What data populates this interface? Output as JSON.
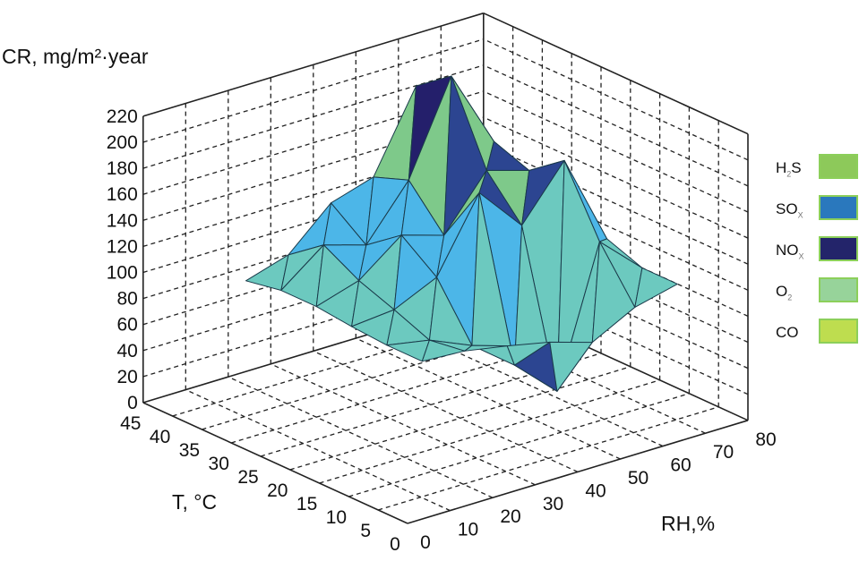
{
  "chart_data": {
    "type": "surface3d",
    "zlabel": "CR, mg/m²·year",
    "xlabel": "T, °C",
    "ylabel": "RH,%",
    "z_ticks": [
      "0",
      "20",
      "40",
      "60",
      "80",
      "100",
      "120",
      "140",
      "160",
      "180",
      "200",
      "220"
    ],
    "t_ticks": [
      "0",
      "5",
      "10",
      "15",
      "20",
      "25",
      "30",
      "35",
      "40",
      "45"
    ],
    "rh_ticks": [
      "0",
      "10",
      "20",
      "30",
      "40",
      "50",
      "60",
      "70",
      "80"
    ],
    "zlim": [
      0,
      220
    ],
    "tlim": [
      0,
      45
    ],
    "rhlim": [
      0,
      80
    ],
    "legend": [
      {
        "label": "H",
        "sub": "2",
        "tail": "S",
        "color": "#8dc95a"
      },
      {
        "label": "SO",
        "sub": "X",
        "tail": "",
        "color": "#2a78bd"
      },
      {
        "label": "NO",
        "sub": "X",
        "tail": "",
        "color": "#23246a"
      },
      {
        "label": "O",
        "sub": "2",
        "tail": "",
        "color": "#97d39a"
      },
      {
        "label": "CO",
        "sub": "",
        "tail": "",
        "color": "#bedd4f"
      }
    ],
    "surface": {
      "T": [
        12,
        18,
        24,
        30,
        36,
        42
      ],
      "RH": [
        20,
        30,
        40,
        50,
        60,
        70,
        80
      ],
      "z": [
        [
          80,
          78,
          72,
          65,
          55,
          72,
          80
        ],
        [
          80,
          74,
          60,
          35,
          5,
          110,
          80
        ],
        [
          82,
          85,
          100,
          155,
          120,
          160,
          90
        ],
        [
          85,
          95,
          120,
          110,
          150,
          140,
          85
        ],
        [
          85,
          110,
          100,
          140,
          210,
          150,
          90
        ],
        [
          80,
          90,
          120,
          130,
          190,
          120,
          85
        ]
      ]
    },
    "facet_colors": {
      "base": "#6cc9bf",
      "mid": "#4cb6e8",
      "high_a": "#2c4591",
      "high_b": "#7ec98a",
      "top": "#241f6b"
    }
  }
}
